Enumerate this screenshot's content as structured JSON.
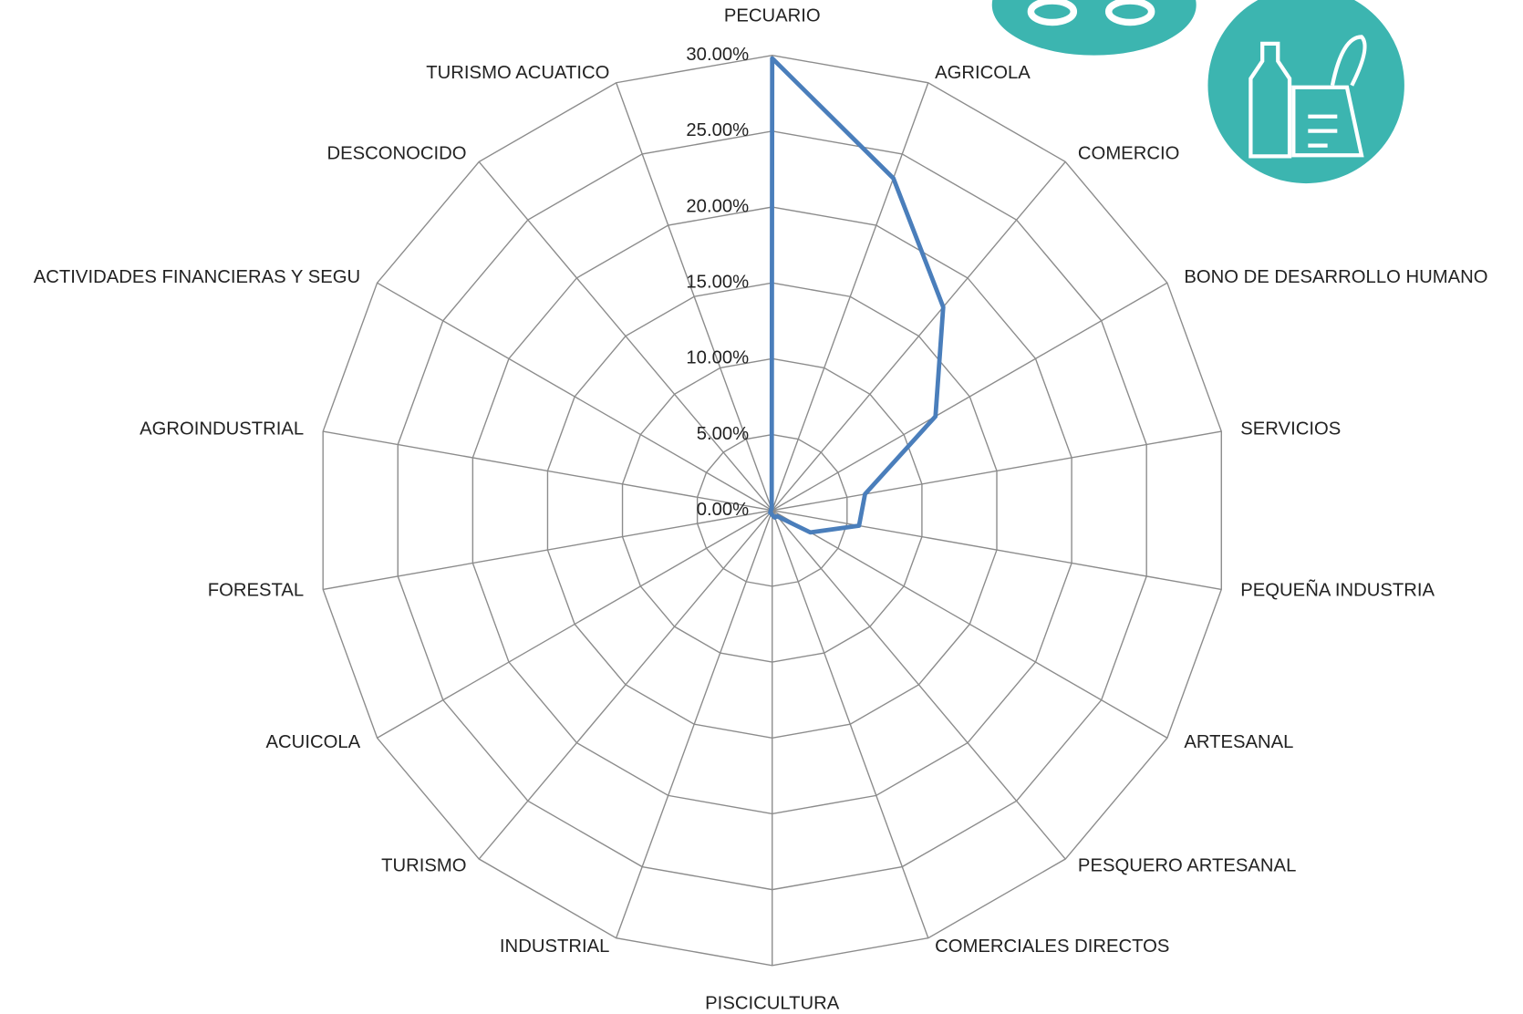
{
  "chart_data": {
    "type": "radar",
    "categories": [
      "PECUARIO",
      "AGRICOLA",
      "COMERCIO",
      "BONO DE DESARROLLO HUMANO",
      "SERVICIOS",
      "PEQUEÑA INDUSTRIA",
      "ARTESANAL",
      "PESQUERO ARTESANAL",
      "COMERCIALES DIRECTOS",
      "PISCICULTURA",
      "INDUSTRIAL",
      "TURISMO",
      "ACUICOLA",
      "FORESTAL",
      "AGROINDUSTRIAL",
      "ACTIVIDADES FINANCIERAS Y SEGU",
      "DESCONOCIDO",
      "TURISMO ACUATICO"
    ],
    "series": [
      {
        "name": null,
        "color": "#4a7ebb",
        "values": [
          29.8,
          23.3,
          17.5,
          12.4,
          6.2,
          5.8,
          2.9,
          0.5,
          0.5,
          0.3,
          0.2,
          0.2,
          0.1,
          0.1,
          0.1,
          0.1,
          0.1,
          0.1
        ]
      }
    ],
    "rlim": [
      0,
      30
    ],
    "rticks": [
      {
        "value": 0,
        "label": "0.00%"
      },
      {
        "value": 5,
        "label": "5.00%"
      },
      {
        "value": 10,
        "label": "10.00%"
      },
      {
        "value": 15,
        "label": "15.00%"
      },
      {
        "value": 20,
        "label": "20.00%"
      },
      {
        "value": 25,
        "label": "25.00%"
      },
      {
        "value": 30,
        "label": "30.00%"
      }
    ],
    "grid": true
  }
}
